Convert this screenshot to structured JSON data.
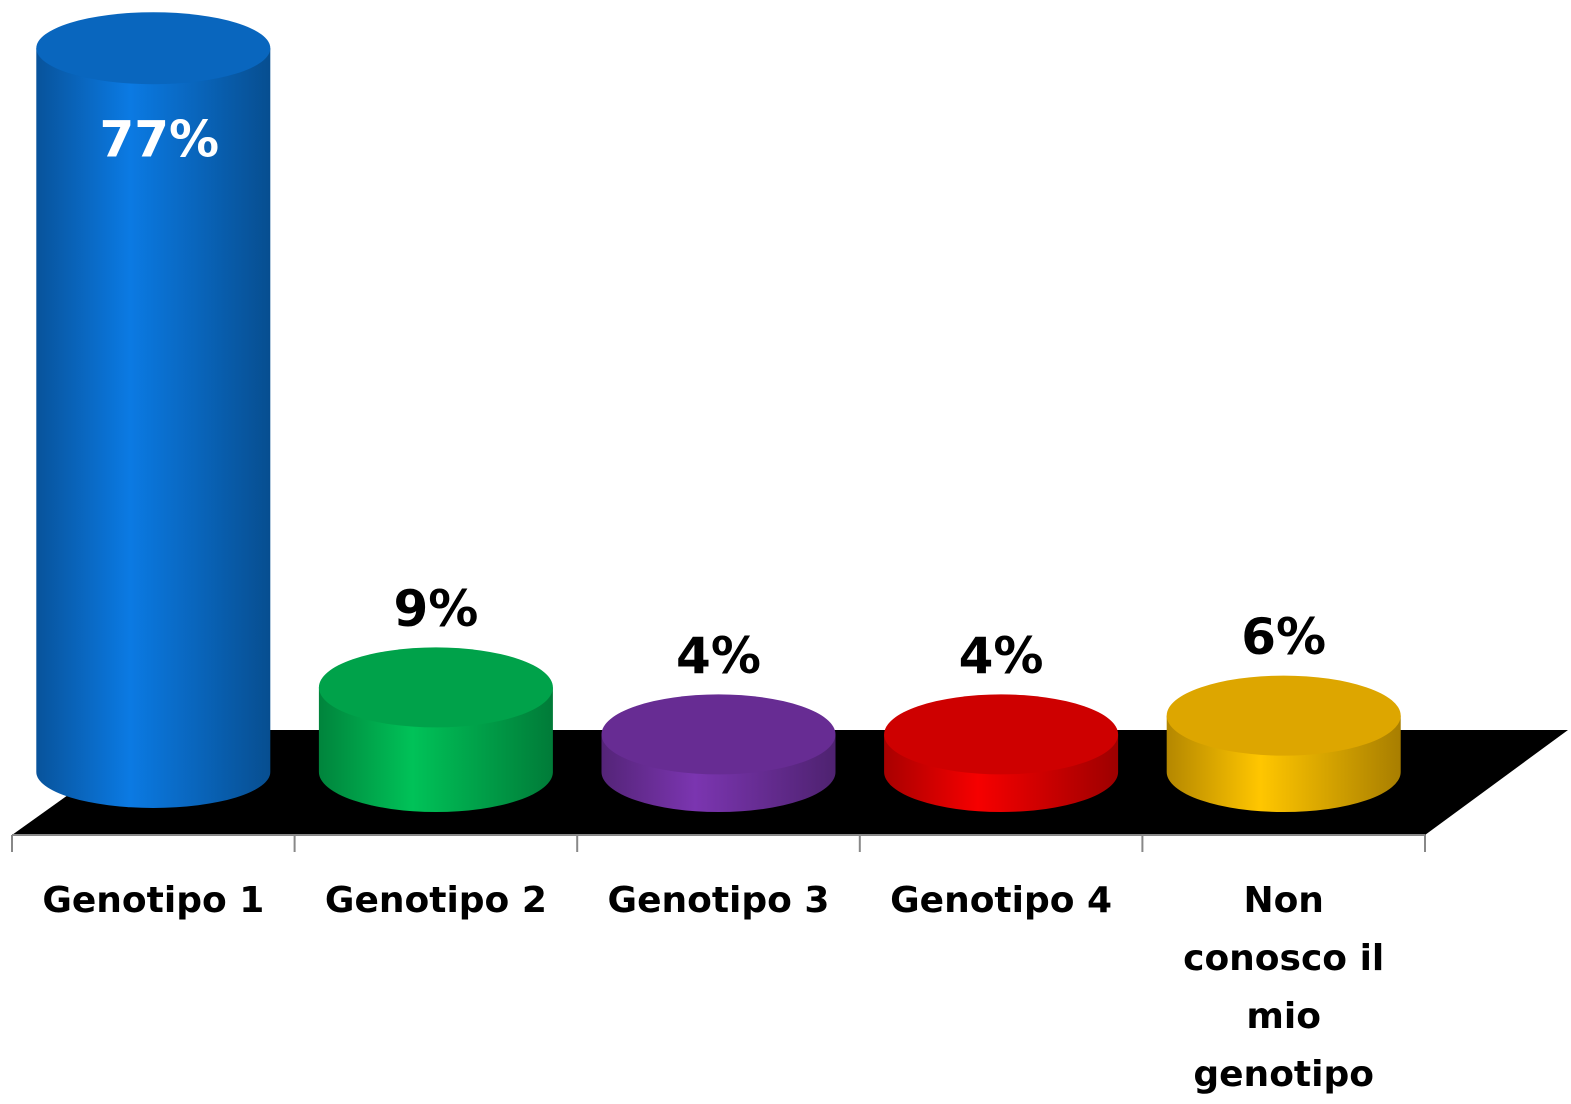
{
  "chart_data": {
    "type": "cylinder",
    "categories": [
      "Genotipo 1",
      "Genotipo 2",
      "Genotipo 3",
      "Genotipo 4",
      "Non conosco il mio genotipo"
    ],
    "values": [
      77,
      9,
      4,
      4,
      6
    ],
    "value_labels": [
      "77%",
      "9%",
      "4%",
      "4%",
      "6%"
    ],
    "colors": [
      "#0a6fce",
      "#00b050",
      "#7030a0",
      "#e00000",
      "#f0b400"
    ]
  }
}
